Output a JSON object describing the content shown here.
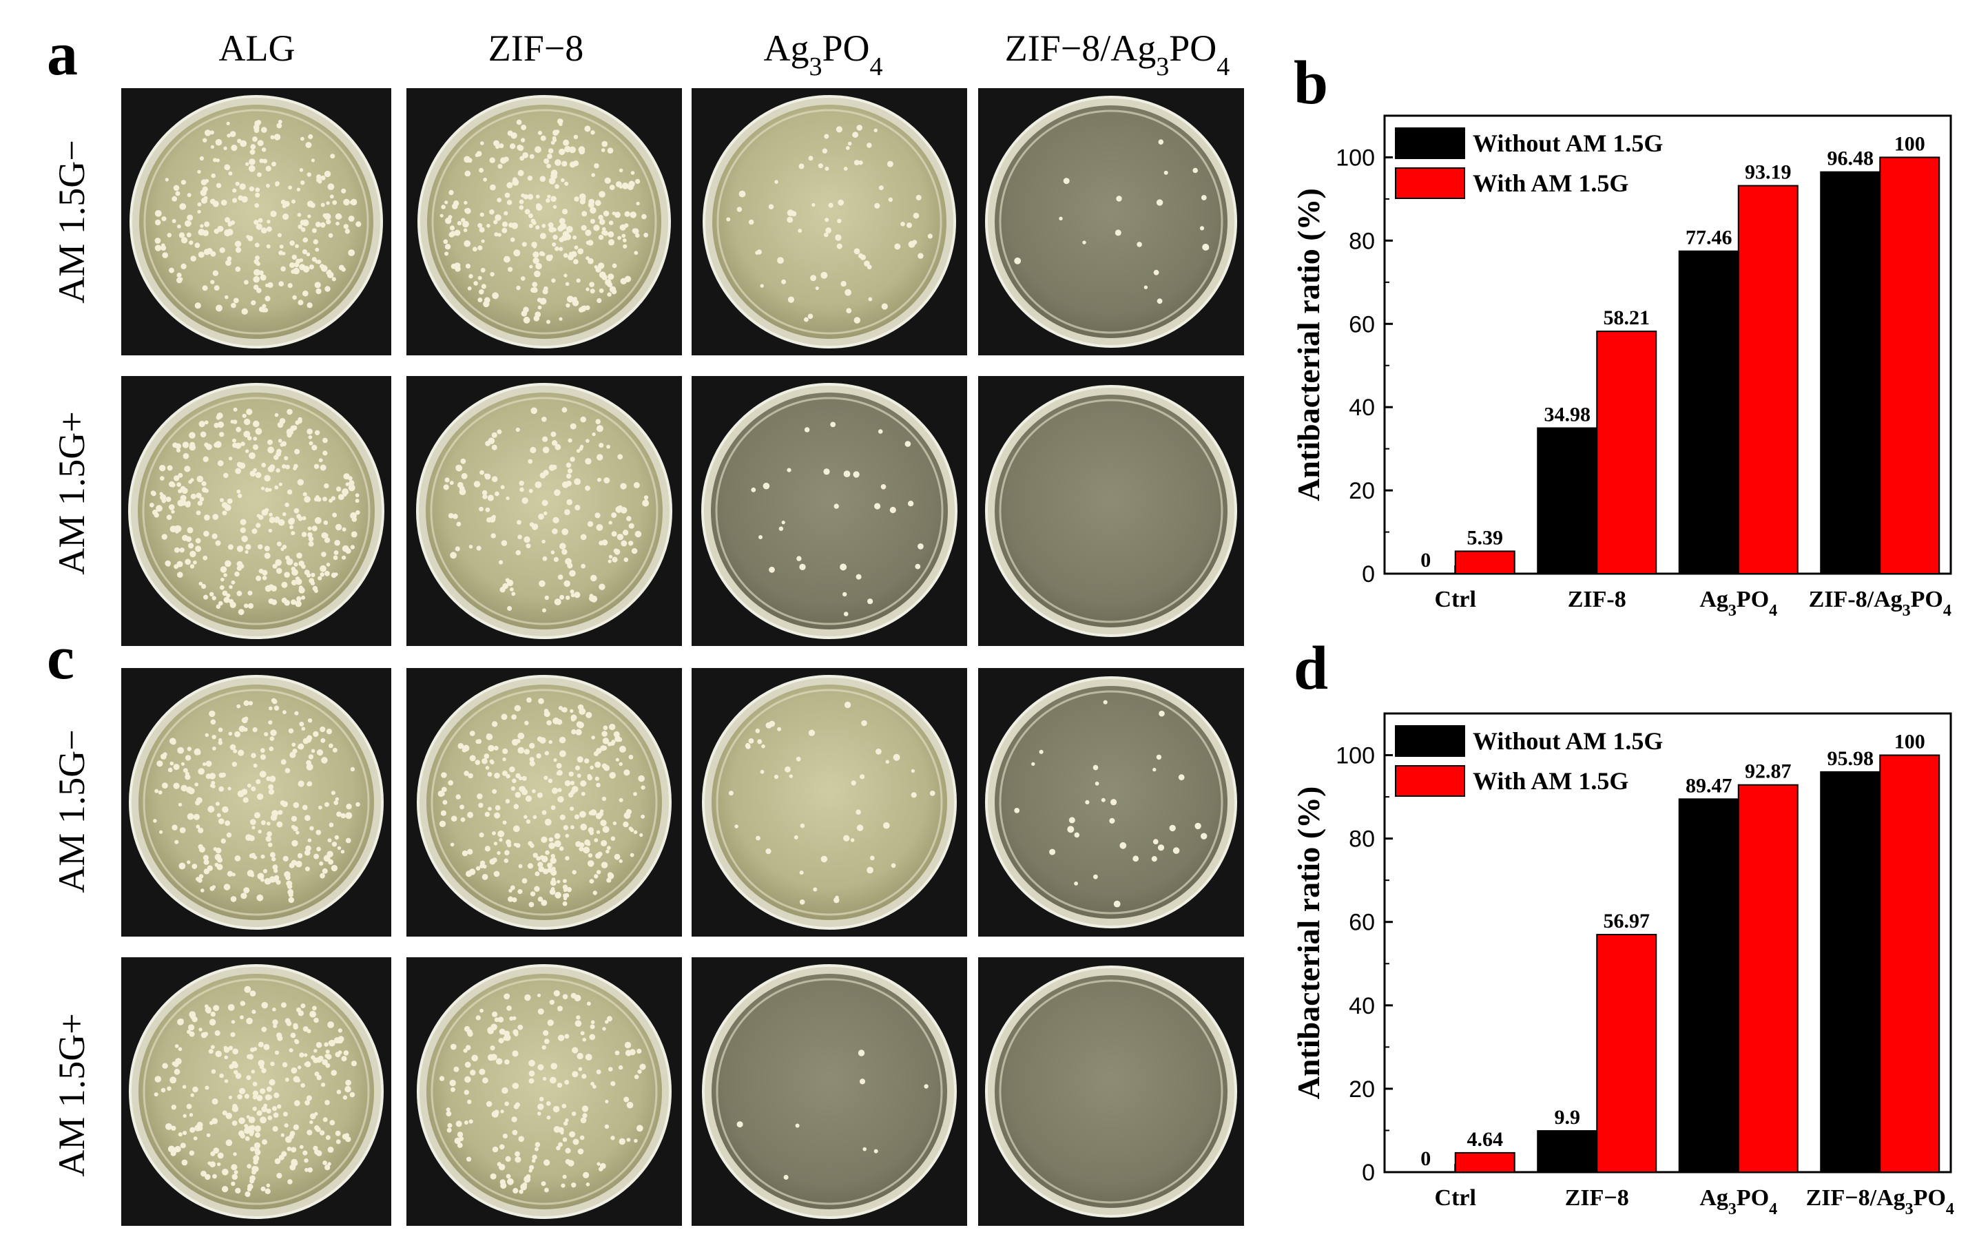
{
  "panels": {
    "a": "a",
    "b": "b",
    "c": "c",
    "d": "d"
  },
  "column_headers": [
    "ALG",
    "ZIF−8",
    "Ag3PO4",
    "ZIF−8/Ag3PO4"
  ],
  "row_labels": [
    "AM 1.5G−",
    "AM 1.5G+"
  ],
  "photo_grid": {
    "colony_counts": {
      "a": [
        [
          260,
          300,
          70,
          18
        ],
        [
          340,
          170,
          28,
          0
        ]
      ],
      "c": [
        [
          260,
          300,
          45,
          30
        ],
        [
          300,
          200,
          8,
          0
        ]
      ]
    }
  },
  "colors": {
    "without": "#000000",
    "with": "#ff0000",
    "photo_bg": "#141414",
    "dish_agar": "#c8c49a",
    "colony": "#f3efd8"
  },
  "chart_data": [
    {
      "panel": "b",
      "type": "bar",
      "categories": [
        "Ctrl",
        "ZIF-8",
        "Ag3PO4",
        "ZIF-8/Ag3PO4"
      ],
      "series": [
        {
          "name": "Without AM 1.5G",
          "values": [
            0,
            34.98,
            77.46,
            96.48
          ],
          "labels": [
            "0",
            "34.98",
            "77.46",
            "96.48"
          ]
        },
        {
          "name": "With AM 1.5G",
          "values": [
            5.39,
            58.21,
            93.19,
            100
          ],
          "labels": [
            "5.39",
            "58.21",
            "93.19",
            "100"
          ]
        }
      ],
      "ylabel": "Antibacterial ratio (%)",
      "ylim": [
        0,
        110
      ],
      "yticks": [
        0,
        20,
        40,
        60,
        80,
        100
      ],
      "legend": "top-left",
      "grid": false
    },
    {
      "panel": "d",
      "type": "bar",
      "categories": [
        "Ctrl",
        "ZIF−8",
        "Ag3PO4",
        "ZIF−8/Ag3PO4"
      ],
      "series": [
        {
          "name": "Without AM 1.5G",
          "values": [
            0,
            9.9,
            89.47,
            95.98
          ],
          "labels": [
            "0",
            "9.9",
            "89.47",
            "95.98"
          ]
        },
        {
          "name": "With AM 1.5G",
          "values": [
            4.64,
            56.97,
            92.87,
            100
          ],
          "labels": [
            "4.64",
            "56.97",
            "92.87",
            "100"
          ]
        }
      ],
      "ylabel": "Antibacterial ratio (%)",
      "ylim": [
        0,
        110
      ],
      "yticks": [
        0,
        20,
        40,
        60,
        80,
        100
      ],
      "legend": "top-left",
      "grid": false
    }
  ]
}
